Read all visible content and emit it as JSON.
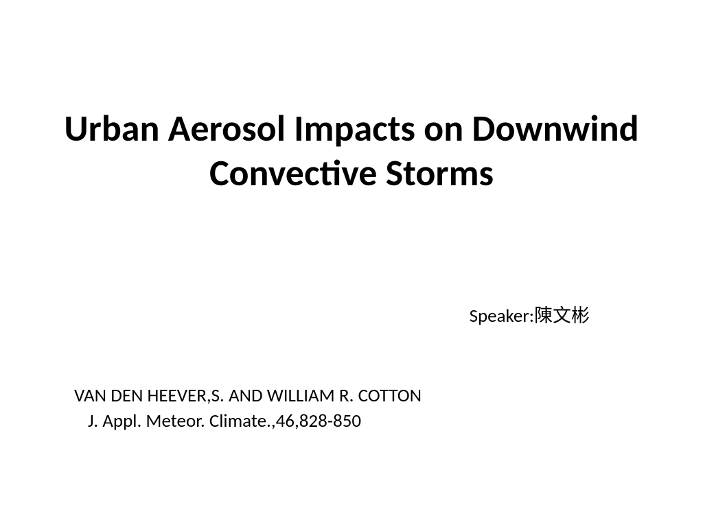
{
  "slide": {
    "title": "Urban Aerosol Impacts on Downwind Convective Storms",
    "speaker_label": "Speaker:陳文彬",
    "authors": "VAN DEN HEEVER,S. AND WILLIAM R. COTTON",
    "citation": "J. Appl. Meteor. Climate.,46,828-850",
    "background_color": "#ffffff",
    "text_color": "#000000",
    "title_fontsize": 54,
    "body_fontsize": 27,
    "font_family": "Calibri"
  }
}
